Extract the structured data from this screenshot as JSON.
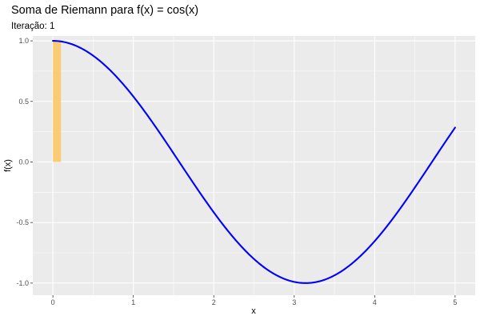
{
  "chart_data": {
    "type": "line",
    "title": "Soma de Riemann para f(x) = cos(x)",
    "subtitle": "Iteração: 1",
    "xlabel": "x",
    "ylabel": "f(x)",
    "xlim": [
      -0.25,
      5.25
    ],
    "ylim": [
      -1.1,
      1.04
    ],
    "x_ticks": [
      0,
      1,
      2,
      3,
      4,
      5
    ],
    "x_tick_labels": [
      "0",
      "1",
      "2",
      "3",
      "4",
      "5"
    ],
    "y_ticks": [
      -1.0,
      -0.5,
      0.0,
      0.5,
      1.0
    ],
    "y_tick_labels": [
      "-1.0",
      "-0.5",
      "0.0",
      "0.5",
      "1.0"
    ],
    "grid": true,
    "series": [
      {
        "function": "cos(x)",
        "x_range": [
          0,
          5
        ],
        "color": "#0000ff"
      }
    ],
    "rectangles": [
      {
        "x0": 0,
        "x1": 0.1,
        "height": 1.0,
        "color": "#fbc96f"
      }
    ],
    "panel_background": "#ebebeb",
    "grid_color": "#ffffff"
  }
}
